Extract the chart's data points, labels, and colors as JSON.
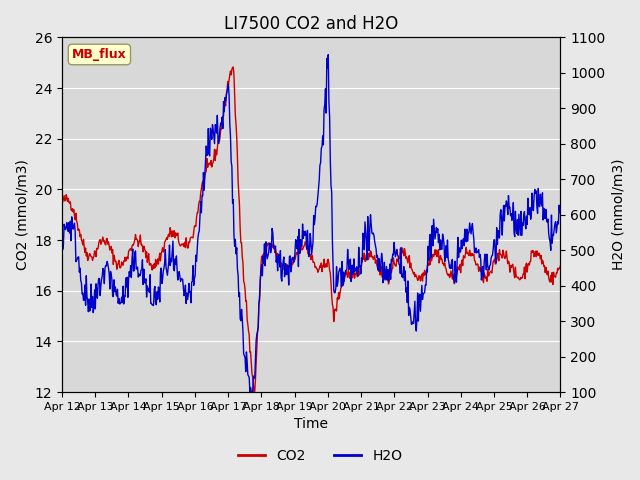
{
  "title": "LI7500 CO2 and H2O",
  "xlabel": "Time",
  "ylabel_left": "CO2 (mmol/m3)",
  "ylabel_right": "H2O (mmol/m3)",
  "ylim_left": [
    12,
    26
  ],
  "ylim_right": [
    100,
    1100
  ],
  "yticks_left": [
    12,
    14,
    16,
    18,
    20,
    22,
    24,
    26
  ],
  "yticks_right": [
    100,
    200,
    300,
    400,
    500,
    600,
    700,
    800,
    900,
    1000,
    1100
  ],
  "x_labels": [
    "Apr 12",
    "Apr 13",
    "Apr 14",
    "Apr 15",
    "Apr 16",
    "Apr 17",
    "Apr 18",
    "Apr 19",
    "Apr 20",
    "Apr 21",
    "Apr 22",
    "Apr 23",
    "Apr 24",
    "Apr 25",
    "Apr 26",
    "Apr 27"
  ],
  "color_co2": "#cc0000",
  "color_h2o": "#0000cc",
  "bg_color": "#e8e8e8",
  "plot_bg_color": "#d8d8d8",
  "watermark_text": "MB_flux",
  "watermark_color": "#cc0000",
  "watermark_bg": "#ffffcc",
  "watermark_edge": "#999966"
}
